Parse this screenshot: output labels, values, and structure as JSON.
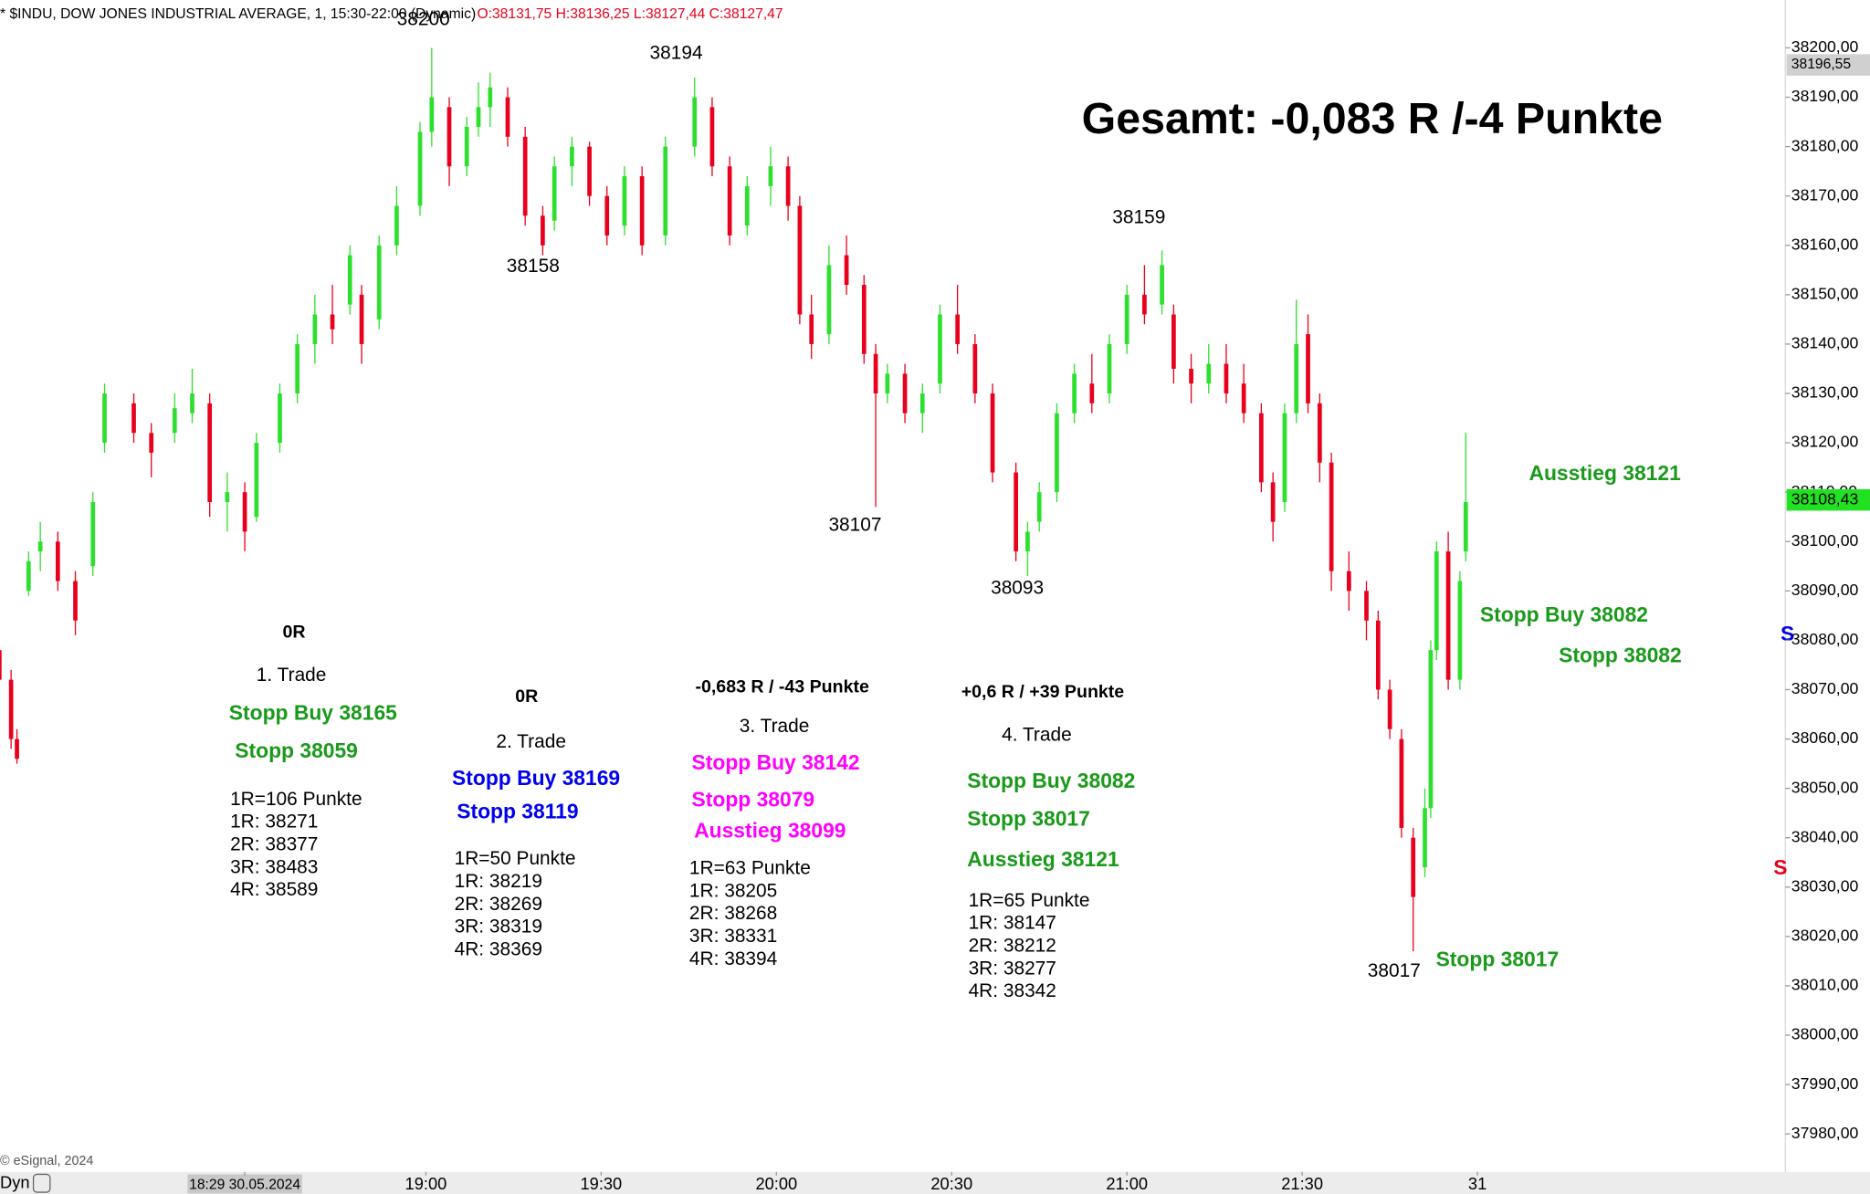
{
  "chart_data": {
    "type": "candlestick",
    "title": "* $INDU, DOW JONES INDUSTRIAL AVERAGE, 1, 15:30-22:00 (Dynamic)",
    "ohlc_label": "O:38131,75 H:38136,25 L:38127,44 C:38127,47",
    "summary": "Gesamt: -0,083 R /-4 Punkte",
    "copyright": "© eSignal, 2024",
    "mode_label": "Dyn",
    "up_color": "#2ee02e",
    "down_color": "#e8001c",
    "x": [
      -13,
      -11,
      -10,
      -8,
      -6,
      -3,
      0,
      3,
      5,
      10,
      13,
      17,
      20,
      23,
      26,
      29,
      31,
      35,
      38,
      41,
      44,
      47,
      49,
      52,
      55,
      59,
      61,
      64,
      67,
      69,
      71,
      74,
      77,
      80,
      82,
      85,
      88,
      91,
      94,
      97,
      101,
      106,
      109,
      112,
      115,
      119,
      122,
      124,
      126,
      129,
      132,
      135,
      137,
      139,
      142,
      145,
      148,
      151,
      154,
      157,
      161,
      163,
      165,
      168,
      171,
      174,
      177,
      180,
      183,
      186,
      188,
      191,
      194,
      197,
      200,
      203,
      205,
      207,
      209,
      211,
      213,
      215,
      218,
      221,
      223,
      225,
      227,
      229,
      231,
      232,
      233,
      235,
      237,
      238
    ],
    "open": [
      38078,
      38072,
      38060,
      38090,
      38098,
      38100,
      38092,
      38095,
      38120,
      38128,
      38122,
      38122,
      38126,
      38128,
      38108,
      38110,
      38105,
      38120,
      38130,
      38140,
      38146,
      38148,
      38150,
      38145,
      38160,
      38168,
      38183,
      38188,
      38176,
      38184,
      38188,
      38190,
      38182,
      38166,
      38165,
      38176,
      38180,
      38170,
      38164,
      38174,
      38162,
      38180,
      38188,
      38176,
      38164,
      38172,
      38176,
      38168,
      38146,
      38142,
      38158,
      38152,
      38138,
      38130,
      38134,
      38126,
      38132,
      38146,
      38140,
      38130,
      38114,
      38098,
      38104,
      38110,
      38126,
      38132,
      38130,
      38140,
      38150,
      38148,
      38146,
      38135,
      38132,
      38136,
      38132,
      38126,
      38112,
      38108,
      38126,
      38142,
      38128,
      38116,
      38094,
      38090,
      38084,
      38070,
      38060,
      38040,
      38034,
      38046,
      38078,
      38098,
      38072,
      38098
    ],
    "high": [
      38080,
      38074,
      38062,
      38098,
      38104,
      38102,
      38094,
      38110,
      38132,
      38130,
      38124,
      38130,
      38135,
      38130,
      38114,
      38112,
      38122,
      38132,
      38142,
      38150,
      38152,
      38160,
      38152,
      38162,
      38172,
      38185,
      38200,
      38190,
      38186,
      38193,
      38195,
      38192,
      38184,
      38168,
      38178,
      38182,
      38181,
      38172,
      38176,
      38176,
      38182,
      38194,
      38190,
      38178,
      38174,
      38180,
      38178,
      38170,
      38150,
      38160,
      38162,
      38154,
      38140,
      38136,
      38136,
      38132,
      38148,
      38152,
      38142,
      38132,
      38116,
      38104,
      38112,
      38128,
      38136,
      38138,
      38142,
      38152,
      38156,
      38159,
      38148,
      38138,
      38140,
      38140,
      38136,
      38128,
      38114,
      38128,
      38149,
      38146,
      38130,
      38118,
      38098,
      38092,
      38086,
      38072,
      38062,
      38042,
      38050,
      38080,
      38100,
      38102,
      38094,
      38122
    ],
    "low": [
      38070,
      38058,
      38055,
      38089,
      38094,
      38090,
      38081,
      38093,
      38118,
      38120,
      38113,
      38120,
      38124,
      38105,
      38102,
      38098,
      38104,
      38118,
      38128,
      38136,
      38140,
      38146,
      38136,
      38143,
      38158,
      38166,
      38180,
      38172,
      38174,
      38182,
      38184,
      38180,
      38164,
      38158,
      38163,
      38172,
      38168,
      38160,
      38162,
      38158,
      38160,
      38178,
      38174,
      38160,
      38162,
      38168,
      38165,
      38144,
      38137,
      38140,
      38150,
      38136,
      38107,
      38128,
      38124,
      38122,
      38130,
      38138,
      38128,
      38112,
      38096,
      38093,
      38102,
      38108,
      38124,
      38126,
      38128,
      38138,
      38144,
      38146,
      38132,
      38128,
      38130,
      38128,
      38124,
      38110,
      38100,
      38106,
      38124,
      38126,
      38112,
      38090,
      38086,
      38080,
      38068,
      38060,
      38040,
      38017,
      38032,
      38044,
      38076,
      38070,
      38070,
      38096
    ],
    "close": [
      38072,
      38060,
      38056,
      38096,
      38100,
      38092,
      38084,
      38108,
      38130,
      38122,
      38118,
      38127,
      38130,
      38108,
      38110,
      38102,
      38120,
      38130,
      38140,
      38146,
      38143,
      38158,
      38140,
      38160,
      38168,
      38183,
      38190,
      38176,
      38184,
      38188,
      38192,
      38182,
      38166,
      38160,
      38176,
      38180,
      38170,
      38162,
      38174,
      38160,
      38180,
      38190,
      38176,
      38162,
      38172,
      38176,
      38168,
      38146,
      38140,
      38156,
      38152,
      38138,
      38130,
      38134,
      38126,
      38130,
      38146,
      38140,
      38130,
      38114,
      38098,
      38102,
      38110,
      38126,
      38134,
      38128,
      38140,
      38150,
      38146,
      38156,
      38135,
      38132,
      38136,
      38130,
      38126,
      38112,
      38104,
      38126,
      38140,
      38128,
      38116,
      38094,
      38090,
      38084,
      38070,
      38062,
      38042,
      38028,
      38046,
      38078,
      38098,
      38072,
      38092,
      38108
    ],
    "xlim": [
      -12.9,
      292.7
    ],
    "ylim": [
      37972.3,
      38209.7
    ],
    "xticks": [
      {
        "value": 29,
        "label": "18:29 30.05.2024"
      },
      {
        "value": 60,
        "label": "19:00"
      },
      {
        "value": 90,
        "label": "19:30"
      },
      {
        "value": 120,
        "label": "20:00"
      },
      {
        "value": 150,
        "label": "20:30"
      },
      {
        "value": 180,
        "label": "21:00"
      },
      {
        "value": 210,
        "label": "21:30"
      },
      {
        "value": 240,
        "label": "31"
      }
    ],
    "yticks": [
      {
        "value": 38200,
        "label": "38200,00"
      },
      {
        "value": 38190,
        "label": "38190,00"
      },
      {
        "value": 38180,
        "label": "38180,00"
      },
      {
        "value": 38170,
        "label": "38170,00"
      },
      {
        "value": 38160,
        "label": "38160,00"
      },
      {
        "value": 38150,
        "label": "38150,00"
      },
      {
        "value": 38140,
        "label": "38140,00"
      },
      {
        "value": 38130,
        "label": "38130,00"
      },
      {
        "value": 38120,
        "label": "38120,00"
      },
      {
        "value": 38110,
        "label": "38110,00"
      },
      {
        "value": 38100,
        "label": "38100,00"
      },
      {
        "value": 38090,
        "label": "38090,00"
      },
      {
        "value": 38080,
        "label": "38080,00"
      },
      {
        "value": 38070,
        "label": "38070,00"
      },
      {
        "value": 38060,
        "label": "38060,00"
      },
      {
        "value": 38050,
        "label": "38050,00"
      },
      {
        "value": 38040,
        "label": "38040,00"
      },
      {
        "value": 38030,
        "label": "38030,00"
      },
      {
        "value": 38020,
        "label": "38020,00"
      },
      {
        "value": 38010,
        "label": "38010,00"
      },
      {
        "value": 38000,
        "label": "38000,00"
      },
      {
        "value": 37990,
        "label": "37990,00"
      },
      {
        "value": 37980,
        "label": "37980,00"
      }
    ],
    "price_markers": [
      {
        "value": 38196.55,
        "label": "38196,55",
        "color": "#d0d0d0"
      },
      {
        "value": 38108.43,
        "label": "38108,43",
        "color": "#22e022"
      }
    ],
    "extremes": [
      38200,
      38194,
      38158,
      38107,
      38093,
      38159,
      38017
    ],
    "annotations": [
      {
        "text": "0R",
        "color": "#000000",
        "bold": true
      },
      {
        "text": "1. Trade",
        "color": "#000000",
        "bold": false
      },
      {
        "text": "Stopp Buy 38165",
        "color": "#1a9a1a",
        "bold": true
      },
      {
        "text": "Stopp 38059",
        "color": "#1a9a1a",
        "bold": true
      },
      {
        "text": "1R=106 Punkte",
        "color": "#000000",
        "bold": false
      },
      {
        "text": "1R: 38271",
        "color": "#000000",
        "bold": false
      },
      {
        "text": "2R: 38377",
        "color": "#000000",
        "bold": false
      },
      {
        "text": "3R: 38483",
        "color": "#000000",
        "bold": false
      },
      {
        "text": "4R: 38589",
        "color": "#000000",
        "bold": false
      },
      {
        "text": "0R",
        "color": "#000000",
        "bold": true
      },
      {
        "text": "2. Trade",
        "color": "#000000",
        "bold": false
      },
      {
        "text": "Stopp Buy 38169",
        "color": "#0000ee",
        "bold": true
      },
      {
        "text": "Stopp 38119",
        "color": "#0000ee",
        "bold": true
      },
      {
        "text": "1R=50 Punkte",
        "color": "#000000",
        "bold": false
      },
      {
        "text": "1R: 38219",
        "color": "#000000",
        "bold": false
      },
      {
        "text": "2R: 38269",
        "color": "#000000",
        "bold": false
      },
      {
        "text": "3R: 38319",
        "color": "#000000",
        "bold": false
      },
      {
        "text": "4R: 38369",
        "color": "#000000",
        "bold": false
      },
      {
        "text": "-0,683 R / -43 Punkte",
        "color": "#000000",
        "bold": true
      },
      {
        "text": "3. Trade",
        "color": "#000000",
        "bold": false
      },
      {
        "text": "Stopp Buy 38142",
        "color": "#ff00ff",
        "bold": true
      },
      {
        "text": "Stopp 38079",
        "color": "#ff00ff",
        "bold": true
      },
      {
        "text": "Ausstieg 38099",
        "color": "#ff00ff",
        "bold": true
      },
      {
        "text": "1R=63 Punkte",
        "color": "#000000",
        "bold": false
      },
      {
        "text": "1R: 38205",
        "color": "#000000",
        "bold": false
      },
      {
        "text": "2R: 38268",
        "color": "#000000",
        "bold": false
      },
      {
        "text": "3R: 38331",
        "color": "#000000",
        "bold": false
      },
      {
        "text": "4R: 38394",
        "color": "#000000",
        "bold": false
      },
      {
        "text": "+0,6 R / +39 Punkte",
        "color": "#000000",
        "bold": true
      },
      {
        "text": "4. Trade",
        "color": "#000000",
        "bold": false
      },
      {
        "text": "Stopp Buy 38082",
        "color": "#1a9a1a",
        "bold": true
      },
      {
        "text": "Stopp 38017",
        "color": "#1a9a1a",
        "bold": true
      },
      {
        "text": "Ausstieg 38121",
        "color": "#1a9a1a",
        "bold": true
      },
      {
        "text": "1R=65 Punkte",
        "color": "#000000",
        "bold": false
      },
      {
        "text": "1R: 38147",
        "color": "#000000",
        "bold": false
      },
      {
        "text": "2R: 38212",
        "color": "#000000",
        "bold": false
      },
      {
        "text": "3R: 38277",
        "color": "#000000",
        "bold": false
      },
      {
        "text": "4R: 38342",
        "color": "#000000",
        "bold": false
      },
      {
        "text": "Ausstieg 38121",
        "color": "#1a9a1a",
        "bold": true
      },
      {
        "text": "Stopp Buy 38082",
        "color": "#1a9a1a",
        "bold": true
      },
      {
        "text": "Stopp 38082",
        "color": "#1a9a1a",
        "bold": true
      },
      {
        "text": "Stopp 38017",
        "color": "#1a9a1a",
        "bold": true
      },
      {
        "text": "S",
        "color": "#0000ee",
        "bold": true
      },
      {
        "text": "S",
        "color": "#e8001c",
        "bold": true
      }
    ]
  }
}
